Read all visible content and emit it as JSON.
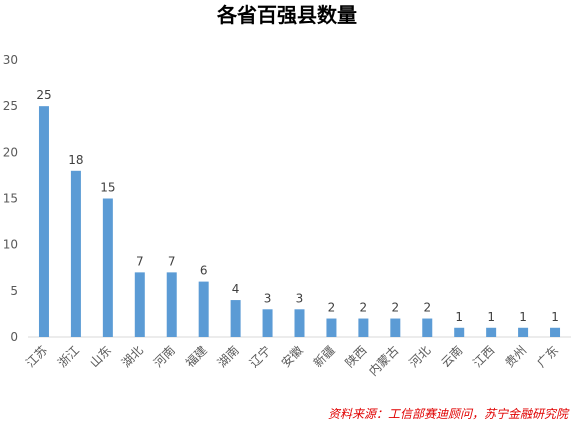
{
  "chart_data": {
    "type": "bar",
    "title": "各省百强县数量",
    "categories": [
      "江苏",
      "浙江",
      "山东",
      "湖北",
      "河南",
      "福建",
      "湖南",
      "辽宁",
      "安徽",
      "新疆",
      "陕西",
      "内蒙古",
      "河北",
      "云南",
      "江西",
      "贵州",
      "广东"
    ],
    "values": [
      25,
      18,
      15,
      7,
      7,
      6,
      4,
      3,
      3,
      2,
      2,
      2,
      2,
      1,
      1,
      1,
      1
    ],
    "ylim": [
      0,
      30
    ],
    "yticks": [
      0,
      5,
      10,
      15,
      20,
      25,
      30
    ],
    "grid": false,
    "legend": "none",
    "bar_color": "#5b9bd5",
    "data_labels": true
  },
  "source_note": "资料来源：工信部赛迪顾问，苏宁金融研究院",
  "colors": {
    "bar": "#5b9bd5",
    "axis": "#d9d9d9",
    "source": "#e00000"
  }
}
